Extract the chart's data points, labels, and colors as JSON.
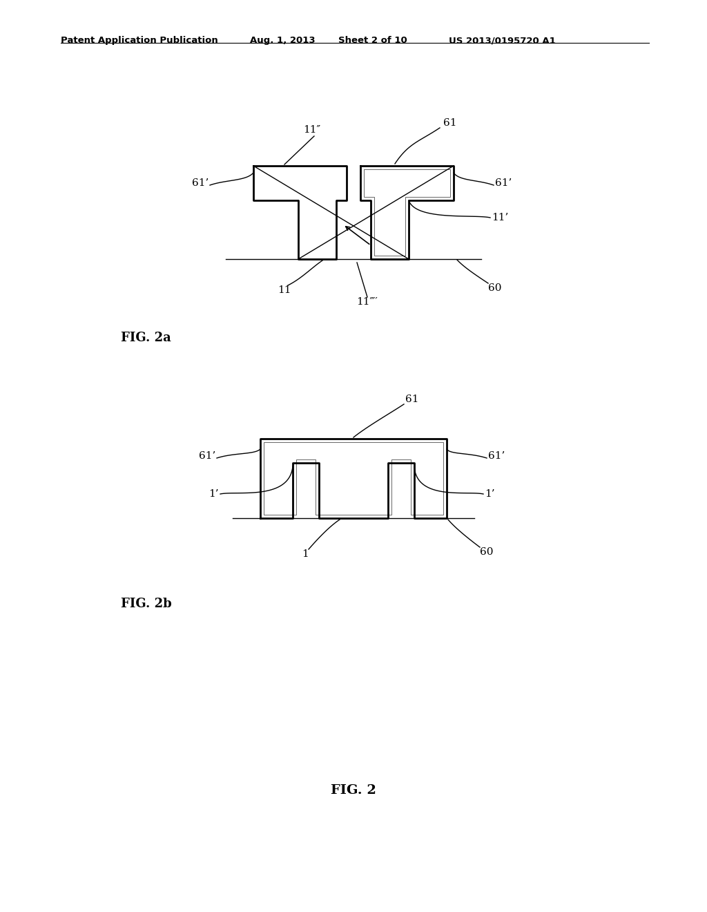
{
  "title_line1": "Patent Application Publication",
  "title_line2": "Aug. 1, 2013",
  "title_line3": "Sheet 2 of 10",
  "title_line4": "US 2013/0195720 A1",
  "fig2a_label": "FIG. 2a",
  "fig2b_label": "FIG. 2b",
  "fig2_label": "FIG. 2",
  "bg_color": "#ffffff",
  "line_color": "#000000"
}
